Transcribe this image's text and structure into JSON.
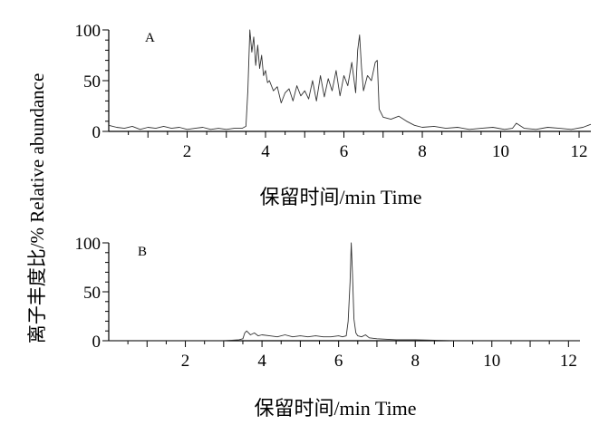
{
  "chart_data": {
    "type": "line",
    "shared_ylabel": "离子丰度比/% Relative abundance",
    "xlim": [
      0,
      12.3
    ],
    "ylim": [
      0,
      100
    ],
    "x_ticks": [
      2,
      4,
      6,
      8,
      10,
      12
    ],
    "y_ticks": [
      0,
      50,
      100
    ],
    "grid": false,
    "panels": [
      {
        "label": "A",
        "xlabel": "保留时间/min Time",
        "series": [
          {
            "x": [
              0.0,
              0.2,
              0.4,
              0.6,
              0.8,
              1.0,
              1.2,
              1.4,
              1.6,
              1.8,
              2.0,
              2.2,
              2.4,
              2.6,
              2.8,
              3.0,
              3.2,
              3.4,
              3.5,
              3.55,
              3.6,
              3.65,
              3.7,
              3.75,
              3.8,
              3.85,
              3.9,
              3.95,
              4.0,
              4.05,
              4.1,
              4.2,
              4.3,
              4.4,
              4.5,
              4.6,
              4.7,
              4.8,
              4.9,
              5.0,
              5.1,
              5.2,
              5.3,
              5.4,
              5.5,
              5.6,
              5.7,
              5.8,
              5.9,
              6.0,
              6.1,
              6.2,
              6.3,
              6.35,
              6.4,
              6.45,
              6.5,
              6.6,
              6.7,
              6.8,
              6.85,
              6.9,
              7.0,
              7.2,
              7.4,
              7.6,
              7.8,
              8.0,
              8.3,
              8.6,
              8.9,
              9.2,
              9.5,
              9.8,
              10.1,
              10.3,
              10.4,
              10.6,
              10.9,
              11.2,
              11.5,
              11.8,
              12.1,
              12.3
            ],
            "y": [
              6,
              4,
              3,
              5,
              2,
              4,
              3,
              5,
              3,
              4,
              2,
              3,
              4,
              2,
              3,
              2,
              3,
              3,
              5,
              40,
              100,
              78,
              93,
              65,
              85,
              62,
              75,
              55,
              60,
              48,
              50,
              40,
              44,
              28,
              38,
              42,
              30,
              45,
              35,
              40,
              32,
              50,
              30,
              55,
              34,
              52,
              40,
              60,
              35,
              55,
              45,
              68,
              38,
              80,
              95,
              62,
              40,
              55,
              50,
              68,
              70,
              22,
              14,
              12,
              15,
              10,
              6,
              4,
              5,
              3,
              4,
              2,
              3,
              4,
              2,
              3,
              8,
              3,
              2,
              4,
              3,
              2,
              4,
              7
            ]
          }
        ]
      },
      {
        "label": "B",
        "xlabel": "保留时间/min Time",
        "series": [
          {
            "x": [
              0.0,
              0.5,
              1.0,
              1.5,
              2.0,
              2.5,
              3.0,
              3.4,
              3.5,
              3.55,
              3.6,
              3.7,
              3.8,
              3.9,
              4.0,
              4.2,
              4.4,
              4.6,
              4.8,
              5.0,
              5.2,
              5.4,
              5.6,
              5.8,
              6.0,
              6.1,
              6.2,
              6.25,
              6.3,
              6.33,
              6.36,
              6.4,
              6.45,
              6.5,
              6.6,
              6.7,
              6.8,
              7.0,
              7.5,
              8.0,
              9.0,
              10.0,
              11.0,
              12.0,
              12.3
            ],
            "y": [
              0,
              0,
              0,
              0,
              0,
              0,
              0,
              1,
              2,
              8,
              10,
              6,
              8,
              5,
              6,
              5,
              4,
              6,
              4,
              5,
              4,
              5,
              4,
              4,
              5,
              4,
              5,
              20,
              60,
              100,
              70,
              22,
              8,
              5,
              4,
              6,
              3,
              2,
              1,
              1,
              0,
              0,
              0,
              0,
              0
            ]
          }
        ]
      }
    ]
  }
}
